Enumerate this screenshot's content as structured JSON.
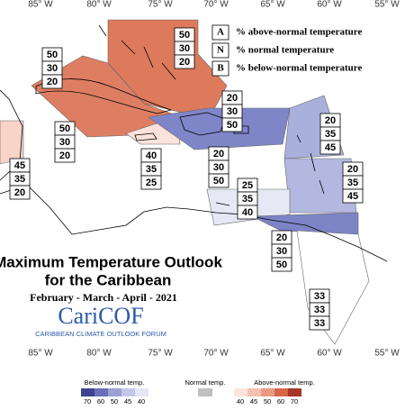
{
  "longitude_labels": [
    "85° W",
    "80° W",
    "75° W",
    "70° W",
    "65° W",
    "60° W",
    "55° W"
  ],
  "legend": [
    {
      "key": "A",
      "text": "% above-normal temperature"
    },
    {
      "key": "N",
      "text": "% normal temperature"
    },
    {
      "key": "B",
      "text": "% below-normal temperature"
    }
  ],
  "title": "Maximum Temperature Outlook",
  "subtitle": "for the Caribbean",
  "period": "February - March - April - 2021",
  "logo": {
    "name": "CariCOF",
    "tagline": "CARIBBEAN CLIMATE OUTLOOK FORUM"
  },
  "regions": [
    {
      "values": [
        50,
        30,
        20
      ]
    },
    {
      "values": [
        50,
        30,
        20
      ]
    },
    {
      "values": [
        50,
        30,
        20
      ]
    },
    {
      "values": [
        45,
        35,
        20
      ]
    },
    {
      "values": [
        40,
        35,
        25
      ]
    },
    {
      "values": [
        20,
        30,
        50
      ]
    },
    {
      "values": [
        20,
        30,
        50
      ]
    },
    {
      "values": [
        20,
        35,
        45
      ]
    },
    {
      "values": [
        20,
        35,
        45
      ]
    },
    {
      "values": [
        25,
        35,
        40
      ]
    },
    {
      "values": [
        20,
        30,
        50
      ]
    },
    {
      "values": [
        33,
        33,
        33
      ]
    }
  ],
  "colorbar": {
    "below": {
      "label": "Below-normal temp.",
      "ticks": [
        70,
        60,
        50,
        45,
        40
      ]
    },
    "normal": {
      "label": "Normal temp."
    },
    "above": {
      "label": "Above-normal temp.",
      "ticks": [
        40,
        45,
        50,
        60,
        70
      ]
    }
  }
}
